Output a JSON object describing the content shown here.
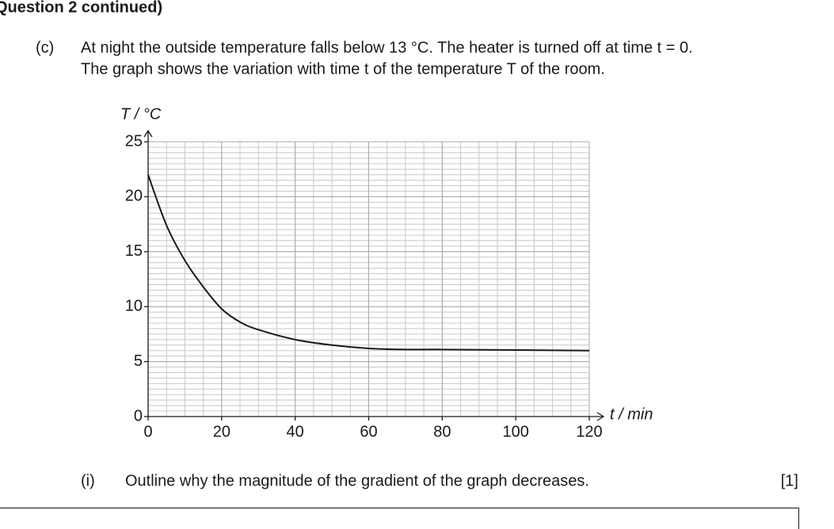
{
  "header": "Question 2 continued)",
  "part": {
    "label": "(c)",
    "lines": [
      "At night the outside temperature falls below 13 °C. The heater is turned off at time t = 0.",
      "The graph shows the variation with time t of the temperature T of the room."
    ]
  },
  "chart_data": {
    "type": "line",
    "x_label": "t / min",
    "y_label": "T / °C",
    "x": [
      0,
      5,
      10,
      15,
      20,
      25,
      30,
      40,
      50,
      60,
      70,
      80,
      100,
      120
    ],
    "series": [
      {
        "name": "T",
        "color": "#1a1a1a",
        "values": [
          22,
          17.4,
          14.2,
          11.8,
          9.8,
          8.6,
          7.9,
          7.0,
          6.5,
          6.2,
          6.1,
          6.1,
          6.05,
          6.0
        ]
      }
    ],
    "xlim": [
      0,
      120
    ],
    "xticks": [
      0,
      20,
      40,
      60,
      80,
      100,
      120
    ],
    "ylim": [
      0,
      25
    ],
    "yticks": [
      0,
      5,
      10,
      15,
      20,
      25
    ],
    "grid": true
  },
  "question": {
    "label": "(i)",
    "text": "Outline why the magnitude of the gradient of the graph decreases.",
    "marks": "[1]"
  }
}
